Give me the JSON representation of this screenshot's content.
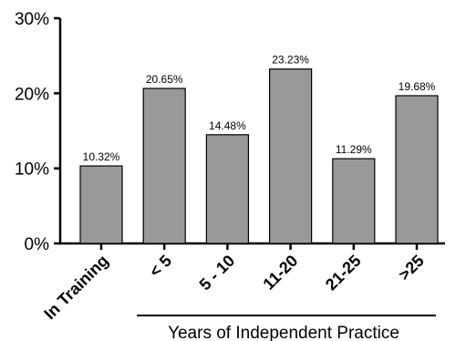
{
  "chart_data": {
    "type": "bar",
    "categories": [
      "In Training",
      "< 5",
      "5 - 10",
      "11-20",
      "21-25",
      ">25"
    ],
    "values": [
      10.32,
      20.65,
      14.48,
      23.23,
      11.29,
      19.68
    ],
    "value_labels": [
      "10.32%",
      "20.65%",
      "14.48%",
      "23.23%",
      "11.29%",
      "19.68%"
    ],
    "ylim": [
      0,
      30
    ],
    "yticks": [
      0,
      10,
      20,
      30
    ],
    "ytick_labels": [
      "0%",
      "10%",
      "20%",
      "30%"
    ],
    "bar_color": "#999999",
    "group_label": "Years of Independent Practice",
    "grid": false
  }
}
